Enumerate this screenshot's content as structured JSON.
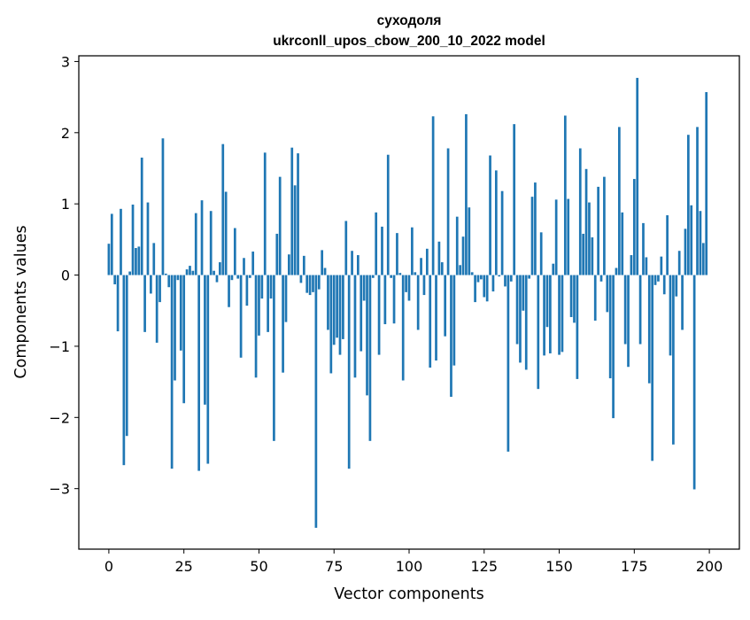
{
  "chart_data": {
    "type": "bar",
    "title_lines": [
      "суходоля",
      "ukrconll_upos_cbow_200_10_2022 model"
    ],
    "xlabel": "Vector components",
    "ylabel": "Components values",
    "xlim": [
      -10,
      210
    ],
    "ylim": [
      -3.85,
      3.08
    ],
    "xticks": [
      0,
      25,
      50,
      75,
      100,
      125,
      150,
      175,
      200
    ],
    "xtick_labels": [
      "0",
      "25",
      "50",
      "75",
      "100",
      "125",
      "150",
      "175",
      "200"
    ],
    "yticks": [
      -3,
      -2,
      -1,
      0,
      1,
      2,
      3
    ],
    "ytick_labels": [
      "−3",
      "−2",
      "−1",
      "0",
      "1",
      "2",
      "3"
    ],
    "bar_color": "#1f77b4",
    "grid": false,
    "x": [
      0,
      1,
      2,
      3,
      4,
      5,
      6,
      7,
      8,
      9,
      10,
      11,
      12,
      13,
      14,
      15,
      16,
      17,
      18,
      19,
      20,
      21,
      22,
      23,
      24,
      25,
      26,
      27,
      28,
      29,
      30,
      31,
      32,
      33,
      34,
      35,
      36,
      37,
      38,
      39,
      40,
      41,
      42,
      43,
      44,
      45,
      46,
      47,
      48,
      49,
      50,
      51,
      52,
      53,
      54,
      55,
      56,
      57,
      58,
      59,
      60,
      61,
      62,
      63,
      64,
      65,
      66,
      67,
      68,
      69,
      70,
      71,
      72,
      73,
      74,
      75,
      76,
      77,
      78,
      79,
      80,
      81,
      82,
      83,
      84,
      85,
      86,
      87,
      88,
      89,
      90,
      91,
      92,
      93,
      94,
      95,
      96,
      97,
      98,
      99,
      100,
      101,
      102,
      103,
      104,
      105,
      106,
      107,
      108,
      109,
      110,
      111,
      112,
      113,
      114,
      115,
      116,
      117,
      118,
      119,
      120,
      121,
      122,
      123,
      124,
      125,
      126,
      127,
      128,
      129,
      130,
      131,
      132,
      133,
      134,
      135,
      136,
      137,
      138,
      139,
      140,
      141,
      142,
      143,
      144,
      145,
      146,
      147,
      148,
      149,
      150,
      151,
      152,
      153,
      154,
      155,
      156,
      157,
      158,
      159,
      160,
      161,
      162,
      163,
      164,
      165,
      166,
      167,
      168,
      169,
      170,
      171,
      172,
      173,
      174,
      175,
      176,
      177,
      178,
      179,
      180,
      181,
      182,
      183,
      184,
      185,
      186,
      187,
      188,
      189,
      190,
      191,
      192,
      193,
      194,
      195,
      196,
      197,
      198,
      199
    ],
    "values": [
      0.44,
      0.86,
      -0.13,
      -0.79,
      0.93,
      -2.67,
      -2.26,
      0.05,
      0.99,
      0.38,
      0.4,
      1.65,
      -0.8,
      1.02,
      -0.26,
      0.45,
      -0.95,
      -0.38,
      1.92,
      0.02,
      -0.17,
      -2.72,
      -1.48,
      -0.07,
      -1.06,
      -1.8,
      0.08,
      0.13,
      0.06,
      0.87,
      -2.75,
      1.05,
      -1.82,
      -2.65,
      0.9,
      0.06,
      -0.1,
      0.18,
      1.84,
      1.17,
      -0.45,
      -0.07,
      0.66,
      -0.05,
      -1.16,
      0.24,
      -0.43,
      -0.04,
      0.33,
      -1.44,
      -0.85,
      -0.33,
      1.72,
      -0.8,
      -0.33,
      -2.33,
      0.58,
      1.38,
      -1.37,
      -0.66,
      0.29,
      1.79,
      1.26,
      1.71,
      -0.11,
      0.27,
      -0.25,
      -0.28,
      -0.24,
      -3.55,
      -0.2,
      0.35,
      0.1,
      -0.77,
      -1.38,
      -0.98,
      -0.88,
      -1.12,
      -0.9,
      0.76,
      -2.72,
      0.34,
      -1.44,
      0.28,
      -1.07,
      -0.36,
      -1.69,
      -2.33,
      -0.04,
      0.88,
      -1.12,
      0.68,
      -0.69,
      1.69,
      -0.04,
      -0.68,
      0.59,
      0.03,
      -1.48,
      -0.24,
      -0.36,
      0.67,
      0.04,
      -0.77,
      0.24,
      -0.28,
      0.37,
      -1.3,
      2.23,
      -1.2,
      0.47,
      0.18,
      -0.86,
      1.78,
      -1.71,
      -1.27,
      0.82,
      0.14,
      0.54,
      2.26,
      0.95,
      0.04,
      -0.38,
      -0.1,
      -0.06,
      -0.31,
      -0.37,
      1.68,
      -0.23,
      1.47,
      -0.02,
      1.18,
      -0.16,
      -2.48,
      -0.09,
      2.12,
      -0.97,
      -1.23,
      -0.5,
      -1.33,
      -0.05,
      1.1,
      1.3,
      -1.6,
      0.6,
      -1.13,
      -0.73,
      -1.1,
      0.16,
      1.06,
      -1.12,
      -1.08,
      2.24,
      1.07,
      -0.59,
      -0.67,
      -1.46,
      1.78,
      0.58,
      1.49,
      1.02,
      0.53,
      -0.64,
      1.24,
      -0.09,
      1.38,
      -0.52,
      -1.45,
      -2.01,
      0.1,
      2.08,
      0.88,
      -0.97,
      -1.29,
      0.28,
      1.35,
      2.77,
      -0.97,
      0.73,
      0.25,
      -1.52,
      -2.61,
      -0.14,
      -0.09,
      0.26,
      -0.27,
      0.84,
      -1.13,
      -2.38,
      -0.3,
      0.34,
      -0.77,
      0.65,
      1.97,
      0.98,
      -3.01,
      2.08,
      0.9,
      0.45,
      2.57
    ]
  }
}
